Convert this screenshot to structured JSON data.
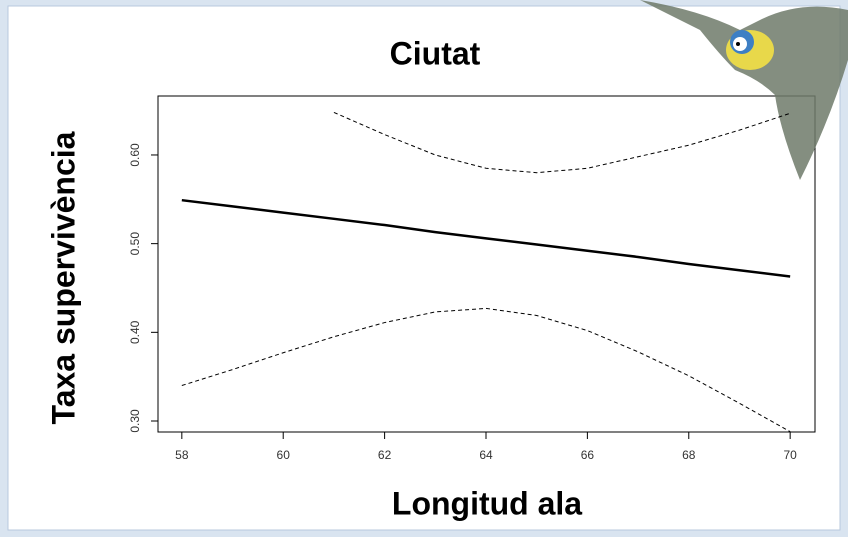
{
  "chart_data": {
    "type": "line",
    "title": "Ciutat",
    "x_label": "Longitud ala",
    "y_label": "Taxa supervivència",
    "x": [
      58,
      59,
      60,
      61,
      62,
      63,
      64,
      65,
      66,
      67,
      68,
      69,
      70
    ],
    "series": [
      {
        "color": "#000000",
        "linestyle": "solid",
        "values": [
          0.549,
          0.542,
          0.535,
          0.528,
          0.521,
          0.513,
          0.506,
          0.499,
          0.492,
          0.485,
          0.477,
          0.47,
          0.463
        ]
      },
      {
        "color": "#000000",
        "linestyle": "dashed",
        "values": [
          null,
          null,
          null,
          0.648,
          0.623,
          0.6,
          0.585,
          0.58,
          0.585,
          0.598,
          0.611,
          0.628,
          0.647
        ]
      },
      {
        "color": "#000000",
        "linestyle": "dashed",
        "values": [
          0.34,
          0.358,
          0.377,
          0.395,
          0.411,
          0.423,
          0.427,
          0.419,
          0.402,
          0.378,
          0.351,
          0.32,
          0.288
        ]
      }
    ],
    "xlim": [
      57.53,
      70.49
    ],
    "ylim": [
      0.2876,
      0.6665
    ],
    "xticks": [
      58,
      60,
      62,
      64,
      66,
      68,
      70
    ],
    "yticks": [
      {
        "value": 0.3,
        "label": "0.30"
      },
      {
        "value": 0.4,
        "label": "0.40"
      },
      {
        "value": 0.5,
        "label": "0.50"
      },
      {
        "value": 0.6,
        "label": "0.60"
      }
    ],
    "grid": false
  }
}
